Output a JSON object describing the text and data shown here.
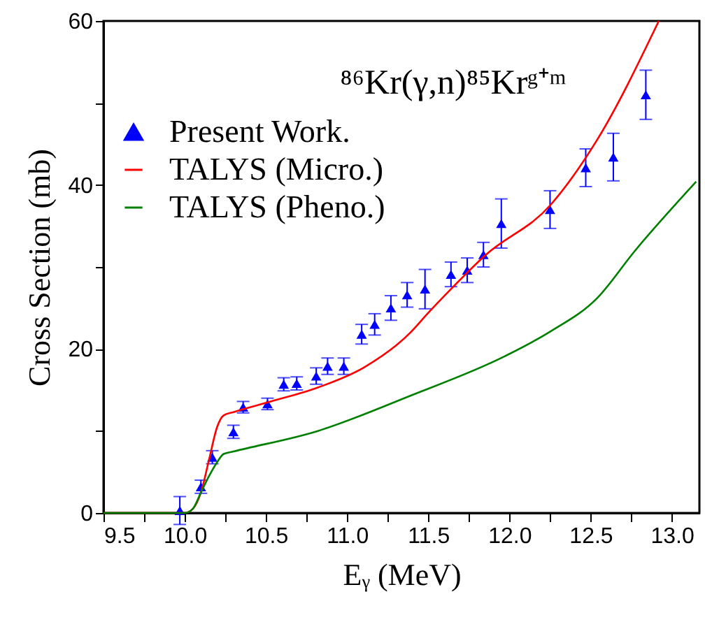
{
  "chart_data": {
    "type": "scatter",
    "xlabel": "Eᵧ (MeV)",
    "ylabel": "Cross Section (mb)",
    "annotations": [
      "⁸⁶Kr(γ,n)⁸⁵Krᵍ⁺ᵐ"
    ],
    "xlim": [
      9.5,
      13.17
    ],
    "ylim": [
      0,
      60
    ],
    "xticks": [
      9.5,
      {
        "value": 9.75,
        "label": null
      },
      "10.0",
      {
        "value": 10.25,
        "label": null
      },
      {
        "value": 10.5,
        "label": "10.5"
      },
      {
        "value": 10.75,
        "label": null
      },
      {
        "value": 11,
        "label": "11.0"
      },
      {
        "value": 11.25,
        "label": null
      },
      {
        "value": 11.5,
        "label": "11.5"
      },
      {
        "value": 11.75,
        "label": null
      },
      {
        "value": 12,
        "label": "12.0"
      },
      {
        "value": 12.25,
        "label": null
      },
      {
        "value": 12.5,
        "label": "12.5"
      },
      {
        "value": 12.75,
        "label": null
      },
      {
        "value": 13,
        "label": "13.0"
      }
    ],
    "yticks": [
      0,
      {
        "value": 10,
        "label": null
      },
      20,
      {
        "value": 30,
        "label": null
      },
      40,
      {
        "value": 50,
        "label": null
      },
      60
    ],
    "legend": "top left",
    "series": [
      {
        "name": "Present Work.",
        "marker": "triangle",
        "color": "#0000ff",
        "x": [
          9.97,
          10.1,
          10.17,
          10.3,
          10.36,
          10.51,
          10.61,
          10.69,
          10.81,
          10.88,
          10.98,
          11.09,
          11.17,
          11.27,
          11.37,
          11.48,
          11.64,
          11.74,
          11.84,
          11.95,
          12.25,
          12.47,
          12.64,
          12.84
        ],
        "values": [
          0.3,
          3.2,
          6.8,
          9.9,
          12.9,
          13.3,
          15.7,
          15.8,
          16.7,
          17.9,
          17.9,
          21.8,
          23.0,
          25.0,
          26.6,
          27.3,
          29.1,
          29.6,
          31.5,
          35.3,
          37.0,
          42.1,
          43.4,
          51.0
        ],
        "errors": [
          1.7,
          0.8,
          0.8,
          0.8,
          0.7,
          0.7,
          0.8,
          0.8,
          1.0,
          1.0,
          1.0,
          1.2,
          1.3,
          1.5,
          1.5,
          2.4,
          1.5,
          1.5,
          1.5,
          3.0,
          2.3,
          2.3,
          2.9,
          3.0
        ]
      },
      {
        "name": "TALYS (Micro.)",
        "type": "line",
        "color": "#ff0000",
        "x": [
          9.5,
          10.0,
          10.05,
          10.1,
          10.15,
          10.2,
          10.24,
          10.3,
          10.53,
          10.82,
          11.1,
          11.39,
          11.5,
          11.64,
          11.85,
          12.25,
          12.54,
          12.92
        ],
        "values": [
          0,
          0,
          0.5,
          2.5,
          6.5,
          10.5,
          11.9,
          12.3,
          13.6,
          15.3,
          17.7,
          22.0,
          24.4,
          27.3,
          31.4,
          37.5,
          45.5,
          60
        ]
      },
      {
        "name": "TALYS (Pheno.)",
        "type": "line",
        "color": "#008000",
        "x": [
          9.5,
          10.0,
          10.05,
          10.1,
          10.15,
          10.2,
          10.24,
          10.3,
          10.82,
          11.39,
          11.97,
          12.25,
          12.54,
          12.77,
          13.15
        ],
        "values": [
          0,
          0,
          0.5,
          2.5,
          4.5,
          6.2,
          7.2,
          7.5,
          10.0,
          14.3,
          19.1,
          22.1,
          26.2,
          31.9,
          40.4
        ]
      }
    ]
  }
}
